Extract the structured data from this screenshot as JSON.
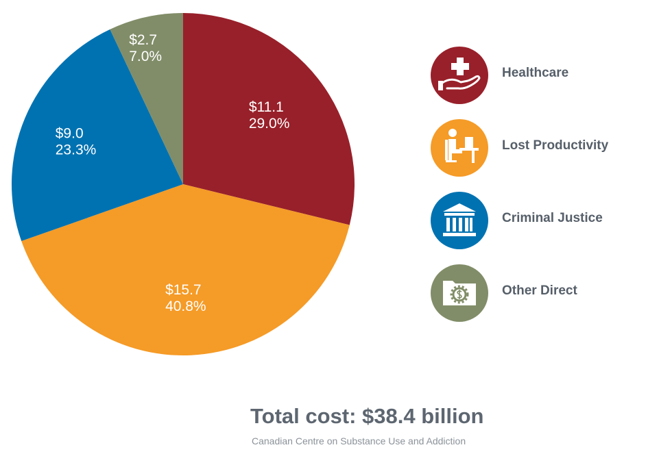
{
  "chart_data": {
    "type": "pie",
    "unit": "billion CAD",
    "slices": [
      {
        "name": "Healthcare",
        "value": 11.1,
        "value_label": "$11.1",
        "percent_label": "29.0%",
        "color": "#98202a"
      },
      {
        "name": "Lost Productivity",
        "value": 15.7,
        "value_label": "$15.7",
        "percent_label": "40.8%",
        "color": "#f59b27"
      },
      {
        "name": "Criminal Justice",
        "value": 9.0,
        "value_label": "$9.0",
        "percent_label": "23.3%",
        "color": "#0072b1"
      },
      {
        "name": "Other Direct",
        "value": 2.7,
        "value_label": "$2.7",
        "percent_label": "7.0%",
        "color": "#818d68"
      }
    ],
    "total_label": "Total cost: $38.4 billion",
    "source": "Canadian Centre on Substance Use and Addiction"
  },
  "legend": {
    "items": [
      {
        "label": "Healthcare",
        "icon": "healthcare-icon",
        "color": "#98202a"
      },
      {
        "label": "Lost Productivity",
        "icon": "worker-desk-icon",
        "color": "#f59b27"
      },
      {
        "label": "Criminal Justice",
        "icon": "courthouse-icon",
        "color": "#0072b1"
      },
      {
        "label": "Other Direct",
        "icon": "money-folder-icon",
        "color": "#818d68"
      }
    ]
  }
}
